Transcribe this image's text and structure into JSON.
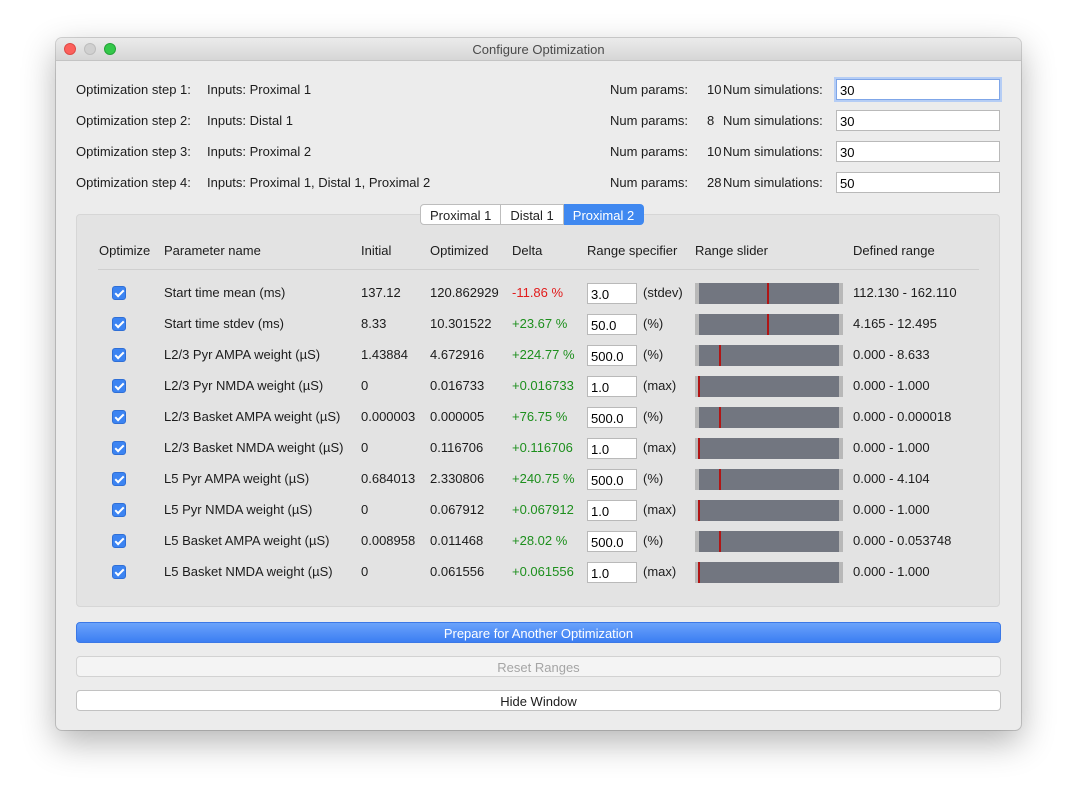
{
  "window": {
    "title": "Configure Optimization"
  },
  "steps": [
    {
      "label": "Optimization step 1:",
      "inputs": "Inputs: Proximal 1",
      "num_params_label": "Num params:",
      "num_params": "10",
      "num_sims_label": "Num simulations:",
      "num_sims": "30"
    },
    {
      "label": "Optimization step 2:",
      "inputs": "Inputs: Distal 1",
      "num_params_label": "Num params:",
      "num_params": "8",
      "num_sims_label": "Num simulations:",
      "num_sims": "30"
    },
    {
      "label": "Optimization step 3:",
      "inputs": "Inputs: Proximal 2",
      "num_params_label": "Num params:",
      "num_params": "10",
      "num_sims_label": "Num simulations:",
      "num_sims": "30"
    },
    {
      "label": "Optimization step 4:",
      "inputs": "Inputs: Proximal 1, Distal 1, Proximal 2",
      "num_params_label": "Num params:",
      "num_params": "28",
      "num_sims_label": "Num simulations:",
      "num_sims": "50"
    }
  ],
  "tabs": [
    {
      "label": "Proximal 1",
      "active": false
    },
    {
      "label": "Distal 1",
      "active": false
    },
    {
      "label": "Proximal 2",
      "active": true
    }
  ],
  "table": {
    "headers": {
      "optimize": "Optimize",
      "param": "Parameter name",
      "initial": "Initial",
      "optimized": "Optimized",
      "delta": "Delta",
      "range_spec": "Range specifier",
      "slider": "Range slider",
      "defined": "Defined range"
    },
    "rows": [
      {
        "checked": true,
        "name": "Start time mean (ms)",
        "initial": "137.12",
        "optimized": "120.862929",
        "delta": "-11.86 %",
        "delta_sign": "neg",
        "range_value": "3.0",
        "range_unit": "(stdev)",
        "slider_fraction": 0.49,
        "defined_range": "112.130 - 162.110"
      },
      {
        "checked": true,
        "name": "Start time stdev (ms)",
        "initial": "8.33",
        "optimized": "10.301522",
        "delta": "+23.67 %",
        "delta_sign": "pos",
        "range_value": "50.0",
        "range_unit": "(%)",
        "slider_fraction": 0.49,
        "defined_range": "4.165 - 12.495"
      },
      {
        "checked": true,
        "name": "L2/3 Pyr AMPA weight (µS)",
        "initial": "1.43884",
        "optimized": "4.672916",
        "delta": "+224.77 %",
        "delta_sign": "pos",
        "range_value": "500.0",
        "range_unit": "(%)",
        "slider_fraction": 0.15,
        "defined_range": "0.000 - 8.633"
      },
      {
        "checked": true,
        "name": "L2/3 Pyr NMDA weight (µS)",
        "initial": "0",
        "optimized": "0.016733",
        "delta": "+0.016733",
        "delta_sign": "pos",
        "range_value": "1.0",
        "range_unit": "(max)",
        "slider_fraction": 0.0,
        "defined_range": "0.000 - 1.000"
      },
      {
        "checked": true,
        "name": "L2/3 Basket AMPA weight (µS)",
        "initial": "0.000003",
        "optimized": "0.000005",
        "delta": "+76.75 %",
        "delta_sign": "pos",
        "range_value": "500.0",
        "range_unit": "(%)",
        "slider_fraction": 0.15,
        "defined_range": "0.000 - 0.000018"
      },
      {
        "checked": true,
        "name": "L2/3 Basket NMDA weight (µS)",
        "initial": "0",
        "optimized": "0.116706",
        "delta": "+0.116706",
        "delta_sign": "pos",
        "range_value": "1.0",
        "range_unit": "(max)",
        "slider_fraction": 0.0,
        "defined_range": "0.000 - 1.000"
      },
      {
        "checked": true,
        "name": "L5 Pyr AMPA weight (µS)",
        "initial": "0.684013",
        "optimized": "2.330806",
        "delta": "+240.75 %",
        "delta_sign": "pos",
        "range_value": "500.0",
        "range_unit": "(%)",
        "slider_fraction": 0.15,
        "defined_range": "0.000 - 4.104"
      },
      {
        "checked": true,
        "name": "L5 Pyr NMDA weight (µS)",
        "initial": "0",
        "optimized": "0.067912",
        "delta": "+0.067912",
        "delta_sign": "pos",
        "range_value": "1.0",
        "range_unit": "(max)",
        "slider_fraction": 0.0,
        "defined_range": "0.000 - 1.000"
      },
      {
        "checked": true,
        "name": "L5 Basket AMPA weight (µS)",
        "initial": "0.008958",
        "optimized": "0.011468",
        "delta": "+28.02 %",
        "delta_sign": "pos",
        "range_value": "500.0",
        "range_unit": "(%)",
        "slider_fraction": 0.15,
        "defined_range": "0.000 - 0.053748"
      },
      {
        "checked": true,
        "name": "L5 Basket NMDA weight (µS)",
        "initial": "0",
        "optimized": "0.061556",
        "delta": "+0.061556",
        "delta_sign": "pos",
        "range_value": "1.0",
        "range_unit": "(max)",
        "slider_fraction": 0.0,
        "defined_range": "0.000 - 1.000"
      }
    ]
  },
  "buttons": {
    "prepare": "Prepare for Another Optimization",
    "reset": "Reset Ranges",
    "hide": "Hide Window"
  },
  "colors": {
    "accent": "#3c84f2",
    "delta_positive": "#1d8f1d",
    "delta_negative": "#e21c1c",
    "slider_track": "#727680",
    "slider_knob": "#b01515"
  }
}
